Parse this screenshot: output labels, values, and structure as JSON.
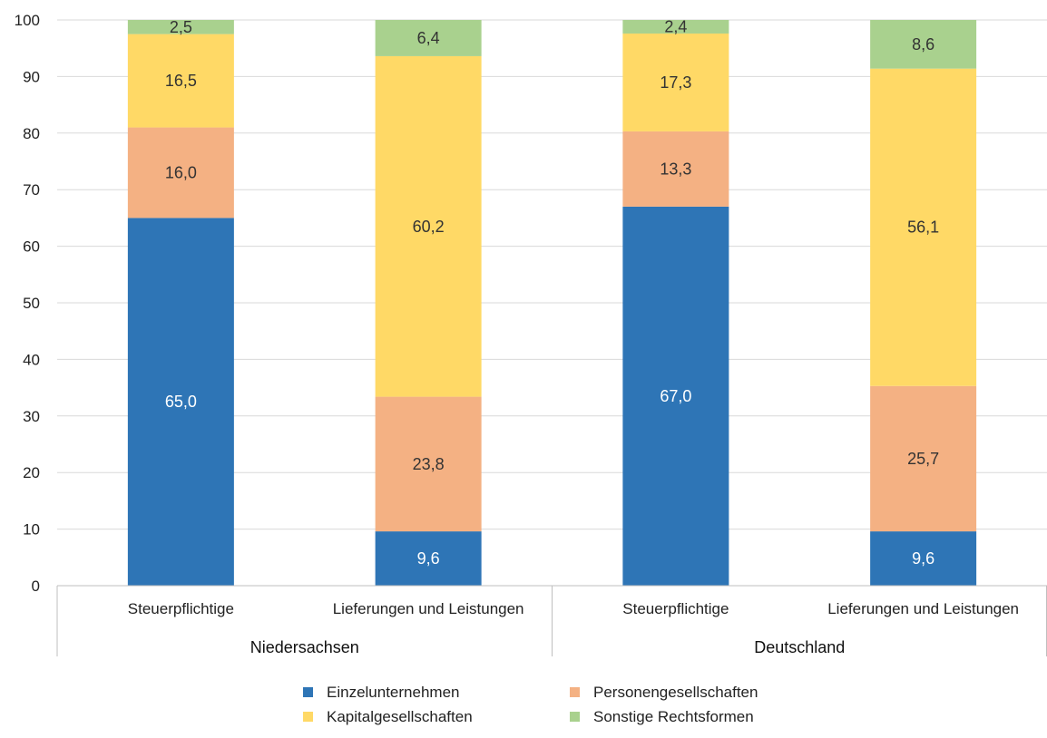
{
  "chart_data": {
    "type": "bar",
    "stacked": true,
    "title": "",
    "xlabel": "",
    "ylabel": "",
    "ylim": [
      0,
      100
    ],
    "yticks": [
      0,
      10,
      20,
      30,
      40,
      50,
      60,
      70,
      80,
      90,
      100
    ],
    "grid": true,
    "legend_position": "bottom",
    "groups": [
      {
        "name": "Niedersachsen",
        "categories": [
          "Steuerpflichtige",
          "Lieferungen und Leistungen"
        ]
      },
      {
        "name": "Deutschland",
        "categories": [
          "Steuerpflichtige",
          "Lieferungen und Leistungen"
        ]
      }
    ],
    "categories": [
      "Steuerpflichtige",
      "Lieferungen und Leistungen",
      "Steuerpflichtige",
      "Lieferungen und Leistungen"
    ],
    "series": [
      {
        "name": "Einzelunternehmen",
        "color": "#2E75B6",
        "label_color": "#ffffff",
        "values": [
          65.0,
          9.6,
          67.0,
          9.6
        ],
        "labels": [
          "65,0",
          "9,6",
          "67,0",
          "9,6"
        ]
      },
      {
        "name": "Personengesellschaften",
        "color": "#F4B183",
        "label_color": "#333333",
        "values": [
          16.0,
          23.8,
          13.3,
          25.7
        ],
        "labels": [
          "16,0",
          "23,8",
          "13,3",
          "25,7"
        ]
      },
      {
        "name": "Kapitalgesellschaften",
        "color": "#FFD966",
        "label_color": "#333333",
        "values": [
          16.5,
          60.2,
          17.3,
          56.1
        ],
        "labels": [
          "16,5",
          "60,2",
          "17,3",
          "56,1"
        ]
      },
      {
        "name": "Sonstige Rechtsformen",
        "color": "#A9D18E",
        "label_color": "#333333",
        "values": [
          2.5,
          6.4,
          2.4,
          8.6
        ],
        "labels": [
          "2,5",
          "6,4",
          "2,4",
          "8,6"
        ]
      }
    ]
  }
}
